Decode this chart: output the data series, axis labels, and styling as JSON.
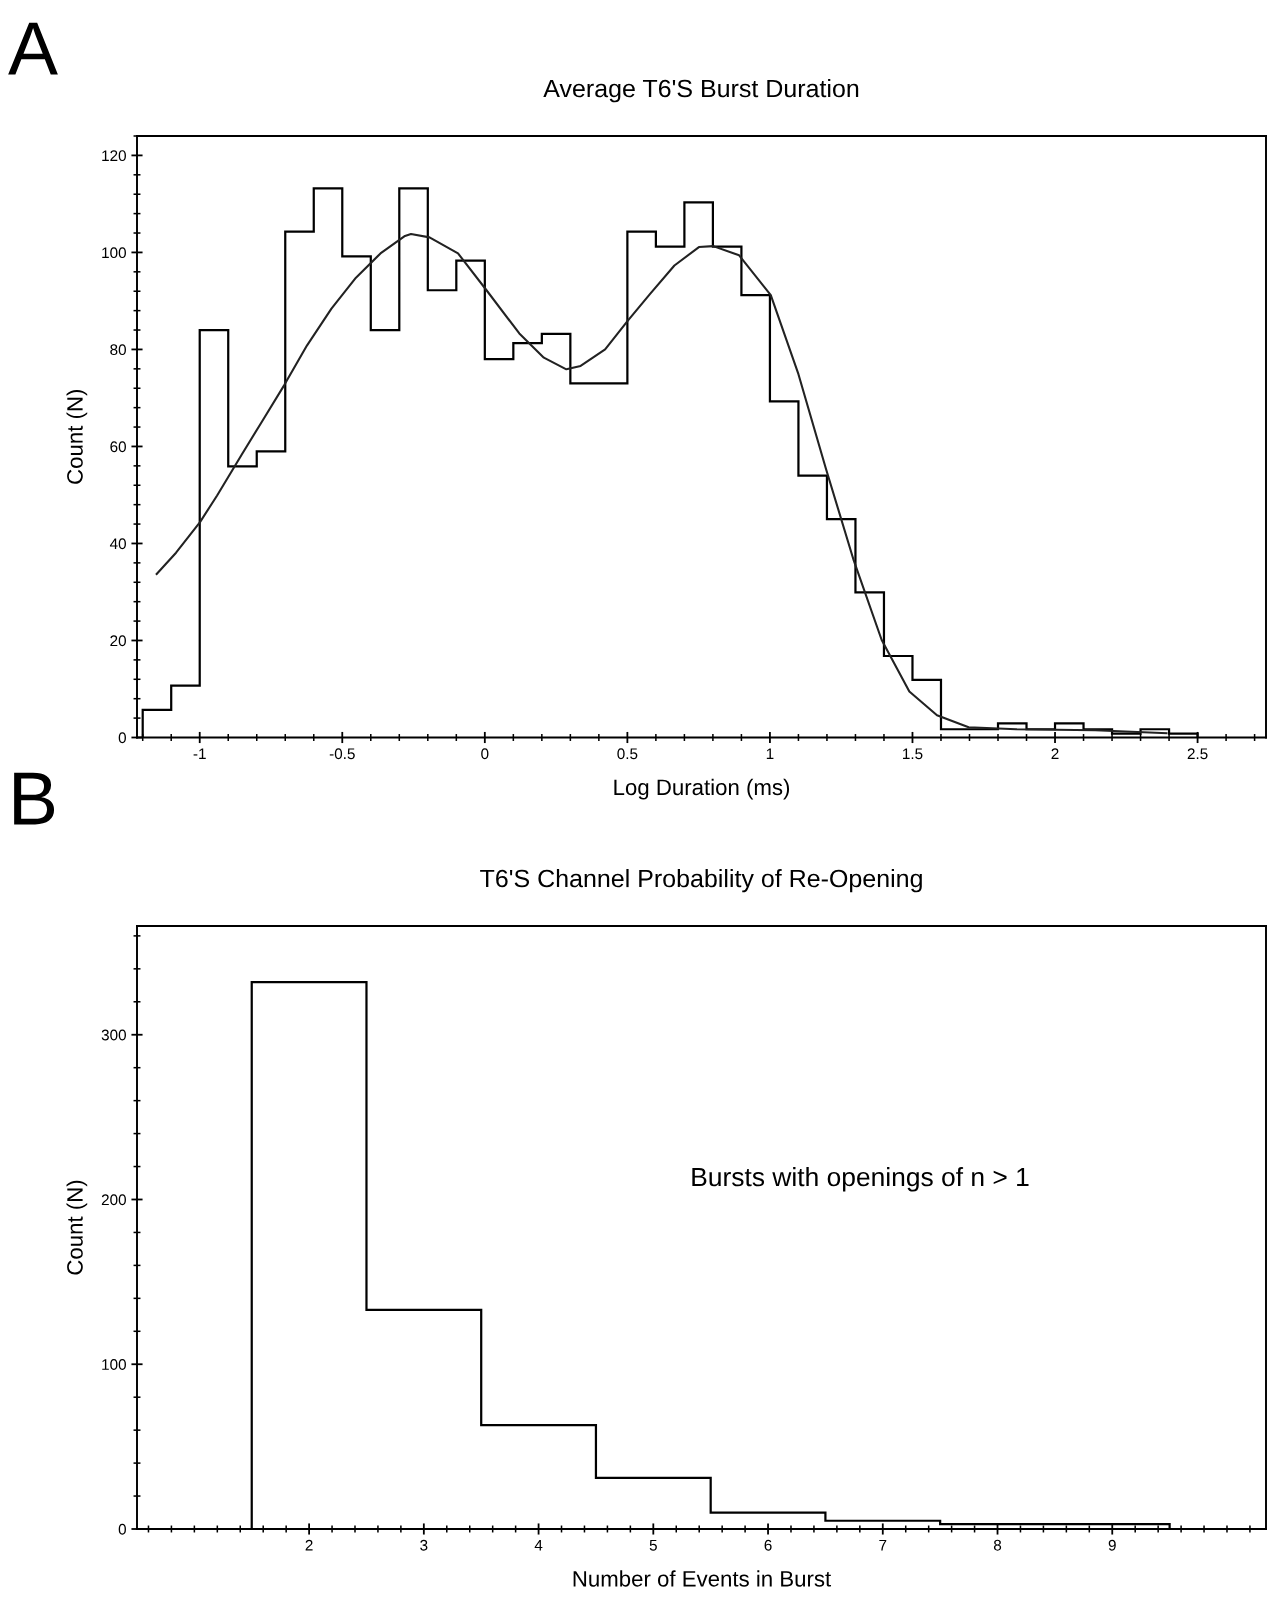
{
  "chart_data": [
    {
      "type": "histogram",
      "title": "Average T6'S Burst Duration",
      "xlabel": "Log Duration (ms)",
      "ylabel": "Count (N)",
      "annotations": [
        "A"
      ],
      "bins": [
        -1.2,
        -1.1,
        -1.0,
        -0.9,
        -0.8,
        -0.7,
        -0.6,
        -0.5,
        -0.4,
        -0.3,
        -0.2,
        -0.1,
        0,
        0.1,
        0.2,
        0.3,
        0.4,
        0.5,
        0.6,
        0.7,
        0.8,
        0.9,
        1.0,
        1.1,
        1.2,
        1.3,
        1.4,
        1.5,
        1.6,
        1.7,
        1.8,
        1.9,
        2.0,
        2.1,
        2.2,
        2.3,
        2.4,
        2.5
      ],
      "values": [
        5.7,
        10.7,
        84,
        55.9,
        59,
        104.3,
        113.2,
        99.2,
        84,
        113.2,
        92.2,
        98.3,
        78,
        81.3,
        83.2,
        73,
        73,
        104.3,
        101.2,
        110.3,
        101.2,
        91.2,
        69.3,
        54,
        45,
        29.9,
        16.8,
        11.9,
        1.7,
        1.7,
        2.9,
        1.7,
        2.9,
        1.7,
        0.8,
        1.7,
        0.8
      ],
      "color": "#000000",
      "series": [
        {
          "type": "line",
          "color": "#222222",
          "x": [
            -1.151,
            -1.083,
            -0.999,
            -0.939,
            -0.853,
            -0.782,
            -0.703,
            -0.624,
            -0.538,
            -0.452,
            -0.366,
            -0.28,
            -0.259,
            -0.194,
            -0.094,
            0.006,
            0.121,
            0.207,
            0.286,
            0.336,
            0.422,
            0.501,
            0.579,
            0.665,
            0.751,
            0.801,
            0.892,
            1.003,
            1.1,
            1.197,
            1.294,
            1.392,
            1.489,
            1.586,
            1.697,
            1.864,
            2.141,
            2.391
          ],
          "values": [
            33.7,
            38.1,
            44.4,
            49.9,
            58.3,
            65.1,
            72.7,
            80.8,
            88.4,
            94.8,
            99.8,
            103.4,
            103.8,
            103.1,
            99.8,
            92.2,
            83.3,
            78.3,
            75.9,
            76.6,
            80,
            85.9,
            91.4,
            97.3,
            101.1,
            101.3,
            99.4,
            91.2,
            74.9,
            55.3,
            36.5,
            20.1,
            9.5,
            4.6,
            2.1,
            1.7,
            1.5,
            0.9
          ]
        }
      ],
      "xlim": [
        -1.22,
        2.74
      ],
      "ylim": [
        0,
        124
      ],
      "xticks": [
        -1,
        -0.5,
        0,
        0.5,
        1,
        1.5,
        2,
        2.5
      ],
      "yticks": [
        0,
        20,
        40,
        60,
        80,
        100,
        120
      ],
      "grid": false,
      "legend": false
    },
    {
      "type": "histogram",
      "title": "T6'S Channel Probability of Re-Opening",
      "xlabel": "Number of Events in Burst",
      "ylabel": "Count (N)",
      "annotations": [
        "B",
        "Bursts with openings of n > 1"
      ],
      "bins": [
        1.5,
        2.5,
        3.5,
        4.5,
        5.5,
        6.5,
        7.5,
        8.5,
        9.5
      ],
      "values": [
        332,
        133,
        63,
        31,
        10,
        5,
        3,
        3
      ],
      "color": "#000000",
      "xlim": [
        0.5,
        10.34
      ],
      "ylim": [
        0,
        366
      ],
      "xticks": [
        2,
        3,
        4,
        5,
        6,
        7,
        8,
        9
      ],
      "yticks": [
        0,
        100,
        200,
        300
      ],
      "grid": false,
      "legend": false
    }
  ]
}
